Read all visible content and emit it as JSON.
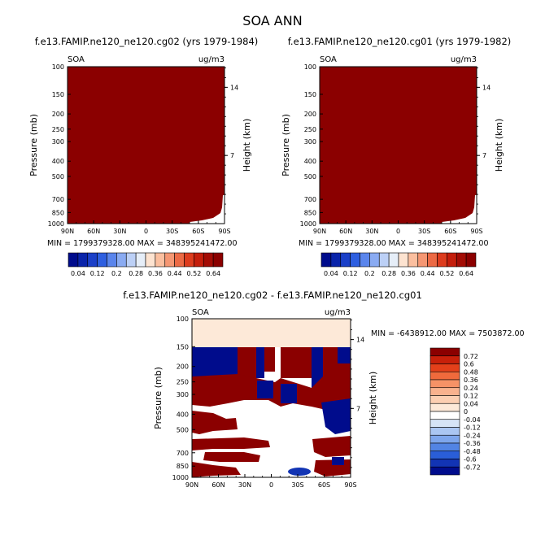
{
  "page_title": "SOA ANN",
  "panels": [
    {
      "title": "f.e13.FAMIP.ne120_ne120.cg02 (yrs 1979-1984)",
      "var_label": "SOA",
      "units": "ug/m3",
      "min_max": "MIN = 1799379328.00   MAX = 348395241472.00"
    },
    {
      "title": "f.e13.FAMIP.ne120_ne120.cg01 (yrs 1979-1982)",
      "var_label": "SOA",
      "units": "ug/m3",
      "min_max": "MIN = 1799379328.00   MAX = 348395241472.00"
    },
    {
      "title": "f.e13.FAMIP.ne120_ne120.cg02 - f.e13.FAMIP.ne120_ne120.cg01",
      "var_label": "SOA",
      "units": "ug/m3",
      "min_max": "MIN = -6438912.00   MAX = 7503872.00"
    }
  ],
  "chart_data": [
    {
      "type": "heatmap",
      "title": "f.e13.FAMIP.ne120_ne120.cg02 (yrs 1979-1984)",
      "ylabel": "Pressure (mb)",
      "y2label": "Height (km)",
      "x_ticks": [
        "90N",
        "60N",
        "30N",
        "0",
        "30S",
        "60S",
        "90S"
      ],
      "y_ticks": [
        "100",
        "150",
        "200",
        "250",
        "300",
        "400",
        "500",
        "700",
        "850",
        "1000"
      ],
      "y2_ticks": [
        "14",
        "7"
      ],
      "field_color": "#8b0000",
      "colorbar": {
        "labels": [
          "0.04",
          "0.12",
          "0.2",
          "0.28",
          "0.36",
          "0.44",
          "0.52",
          "0.64"
        ],
        "colors": [
          "#000c8c",
          "#0a24aa",
          "#1b40c8",
          "#2e5fe0",
          "#5a85ec",
          "#8aabf2",
          "#bcd0f6",
          "#e6eef8",
          "#fde3d0",
          "#fbbf9f",
          "#f59773",
          "#ec6a45",
          "#dd3c1e",
          "#c41e0c",
          "#a30c05",
          "#8b0000"
        ]
      }
    },
    {
      "type": "heatmap",
      "title": "f.e13.FAMIP.ne120_ne120.cg01 (yrs 1979-1982)",
      "ylabel": "Pressure (mb)",
      "y2label": "Height (km)",
      "x_ticks": [
        "90N",
        "60N",
        "30N",
        "0",
        "30S",
        "60S",
        "90S"
      ],
      "y_ticks": [
        "100",
        "150",
        "200",
        "250",
        "300",
        "400",
        "500",
        "700",
        "850",
        "1000"
      ],
      "y2_ticks": [
        "14",
        "7"
      ],
      "field_color": "#8b0000",
      "colorbar": {
        "labels": [
          "0.04",
          "0.12",
          "0.2",
          "0.28",
          "0.36",
          "0.44",
          "0.52",
          "0.64"
        ],
        "colors": [
          "#000c8c",
          "#0a24aa",
          "#1b40c8",
          "#2e5fe0",
          "#5a85ec",
          "#8aabf2",
          "#bcd0f6",
          "#e6eef8",
          "#fde3d0",
          "#fbbf9f",
          "#f59773",
          "#ec6a45",
          "#dd3c1e",
          "#c41e0c",
          "#a30c05",
          "#8b0000"
        ]
      }
    },
    {
      "type": "heatmap",
      "title": "f.e13.FAMIP.ne120_ne120.cg02 - f.e13.FAMIP.ne120_ne120.cg01",
      "ylabel": "Pressure (mb)",
      "y2label": "Height (km)",
      "x_ticks": [
        "90N",
        "60N",
        "30N",
        "0",
        "30S",
        "60S",
        "90S"
      ],
      "y_ticks": [
        "100",
        "150",
        "200",
        "250",
        "300",
        "400",
        "500",
        "700",
        "850",
        "1000"
      ],
      "y2_ticks": [
        "14",
        "7"
      ],
      "colorbar": {
        "labels": [
          "0.72",
          "0.6",
          "0.48",
          "0.36",
          "0.24",
          "0.12",
          "0.04",
          "0",
          "-0.04",
          "-0.12",
          "-0.24",
          "-0.36",
          "-0.48",
          "-0.6",
          "-0.72"
        ],
        "colors": [
          "#8b0000",
          "#c8200a",
          "#e4401a",
          "#f06a3c",
          "#f69266",
          "#f9b28e",
          "#fccfb2",
          "#fde9d8",
          "#ffffff",
          "#d6e4f6",
          "#aac6f2",
          "#7ea6ec",
          "#5284e4",
          "#2a5ed8",
          "#1234b4",
          "#000c8c"
        ]
      }
    }
  ]
}
